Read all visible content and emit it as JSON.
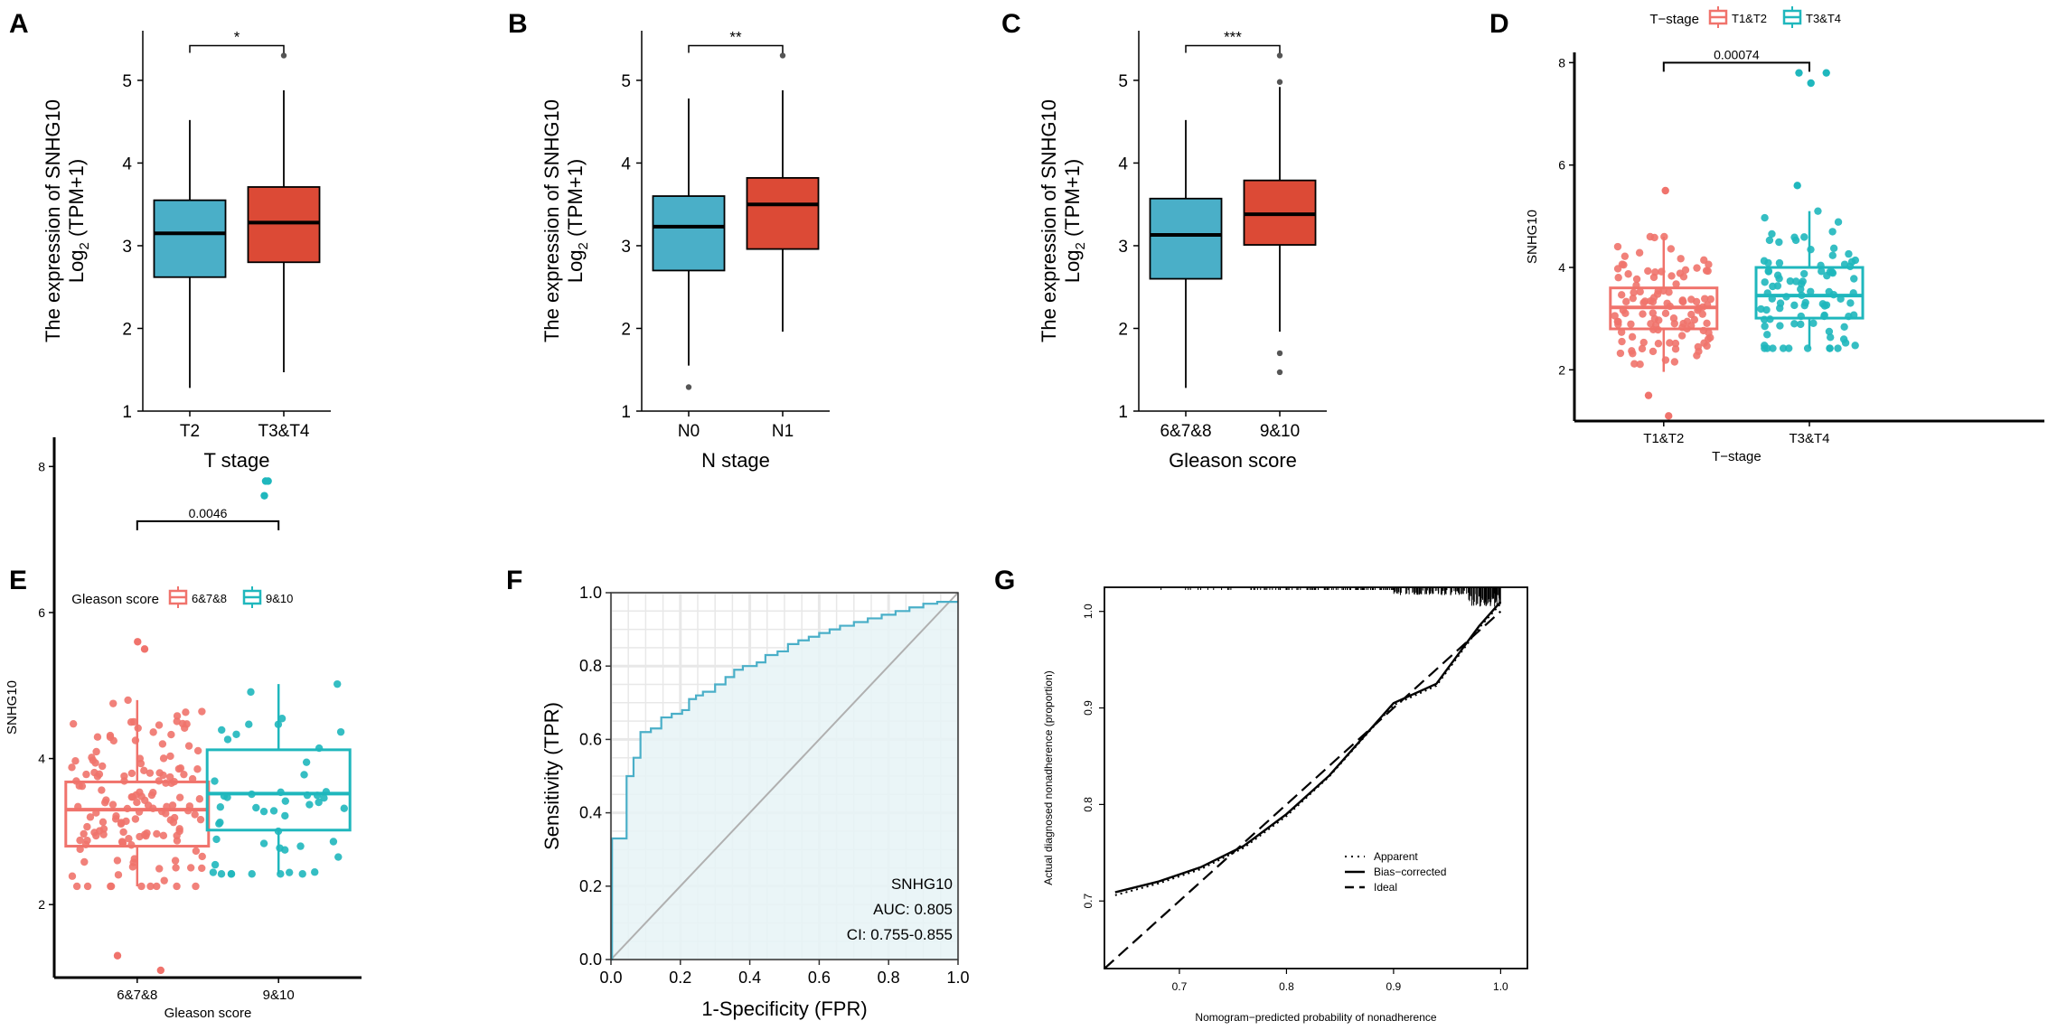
{
  "figure": {
    "description_hidden": false
  },
  "chart_data": [
    {
      "id": "A",
      "panel_label": "A",
      "type": "box",
      "xlabel": "T stage",
      "ylabel_line1": "The expression of SNHG10",
      "ylabel_line2_prefix": "Log",
      "ylabel_line2_sub": "2",
      "ylabel_line2_suffix": " (TPM+1)",
      "ylim": [
        1,
        5.6
      ],
      "yticks": [
        "1",
        "2",
        "3",
        "4",
        "5"
      ],
      "categories": [
        "T2",
        "T3&T4"
      ],
      "boxes": [
        {
          "category": "T2",
          "q1": 2.62,
          "median": 3.15,
          "q3": 3.55,
          "whisker_low": 1.28,
          "whisker_high": 4.52,
          "color": "#4aafc8",
          "outliers": []
        },
        {
          "category": "T3&T4",
          "q1": 2.8,
          "median": 3.28,
          "q3": 3.71,
          "whisker_low": 1.47,
          "whisker_high": 4.88,
          "color": "#dc4a36",
          "outliers": [
            5.3
          ]
        }
      ],
      "significance": {
        "text": "*",
        "level": 5.42
      }
    },
    {
      "id": "B",
      "panel_label": "B",
      "type": "box",
      "xlabel": "N stage",
      "ylabel_line1": "The expression of SNHG10",
      "ylabel_line2_prefix": "Log",
      "ylabel_line2_sub": "2",
      "ylabel_line2_suffix": " (TPM+1)",
      "ylim": [
        1,
        5.6
      ],
      "yticks": [
        "1",
        "2",
        "3",
        "4",
        "5"
      ],
      "categories": [
        "N0",
        "N1"
      ],
      "boxes": [
        {
          "category": "N0",
          "q1": 2.7,
          "median": 3.23,
          "q3": 3.6,
          "whisker_low": 1.55,
          "whisker_high": 4.78,
          "color": "#4aafc8",
          "outliers": [
            1.29
          ]
        },
        {
          "category": "N1",
          "q1": 2.96,
          "median": 3.5,
          "q3": 3.82,
          "whisker_low": 1.96,
          "whisker_high": 4.88,
          "color": "#dc4a36",
          "outliers": [
            5.3
          ]
        }
      ],
      "significance": {
        "text": "**",
        "level": 5.42
      }
    },
    {
      "id": "C",
      "panel_label": "C",
      "type": "box",
      "xlabel": "Gleason score",
      "ylabel_line1": "The expression of SNHG10",
      "ylabel_line2_prefix": "Log",
      "ylabel_line2_sub": "2",
      "ylabel_line2_suffix": " (TPM+1)",
      "ylim": [
        1,
        5.6
      ],
      "yticks": [
        "1",
        "2",
        "3",
        "4",
        "5"
      ],
      "categories": [
        "6&7&8",
        "9&10"
      ],
      "boxes": [
        {
          "category": "6&7&8",
          "q1": 2.6,
          "median": 3.13,
          "q3": 3.57,
          "whisker_low": 1.28,
          "whisker_high": 4.52,
          "color": "#4aafc8",
          "outliers": []
        },
        {
          "category": "9&10",
          "q1": 3.01,
          "median": 3.38,
          "q3": 3.79,
          "whisker_low": 1.96,
          "whisker_high": 4.92,
          "color": "#dc4a36",
          "outliers": [
            5.3,
            4.98,
            1.7,
            1.47
          ]
        }
      ],
      "significance": {
        "text": "***",
        "level": 5.42
      }
    },
    {
      "id": "D",
      "panel_label": "D",
      "type": "box_jitter",
      "xlabel": "T−stage",
      "ylabel": "SNHG10",
      "legend_title": "T−stage",
      "legend_items": [
        "T1&T2",
        "T3&T4"
      ],
      "ylim": [
        1,
        8.2
      ],
      "yticks": [
        "2",
        "4",
        "6",
        "8"
      ],
      "categories": [
        "T1&T2",
        "T3&T4"
      ],
      "boxes": [
        {
          "category": "T1&T2",
          "q1": 2.8,
          "median": 3.22,
          "q3": 3.6,
          "whisker_low": 1.96,
          "whisker_high": 4.6,
          "color": "#f0736c",
          "n_points": 110,
          "high_points": [
            5.5
          ],
          "low_points": [
            1.5,
            1.1
          ]
        },
        {
          "category": "T3&T4",
          "q1": 3.01,
          "median": 3.45,
          "q3": 4.0,
          "whisker_low": 2.42,
          "whisker_high": 5.1,
          "color": "#1fb7bd",
          "n_points": 90,
          "high_points": [
            7.8,
            7.6,
            7.8,
            5.6
          ],
          "low_points": []
        }
      ],
      "significance": {
        "text": "0.00074",
        "level": 8.0
      }
    },
    {
      "id": "E",
      "panel_label": "E",
      "type": "box_jitter",
      "xlabel": "Gleason score",
      "ylabel": "SNHG10",
      "legend_title": "Gleason score",
      "legend_items": [
        "6&7&8",
        "9&10"
      ],
      "ylim": [
        1,
        8.4
      ],
      "yticks": [
        "2",
        "4",
        "6",
        "8"
      ],
      "categories": [
        "6&7&8",
        "9&10"
      ],
      "boxes": [
        {
          "category": "6&7&8",
          "q1": 2.8,
          "median": 3.3,
          "q3": 3.68,
          "whisker_low": 2.25,
          "whisker_high": 4.8,
          "color": "#f0736c",
          "n_points": 150,
          "high_points": [
            5.6,
            5.5
          ],
          "low_points": [
            1.3,
            1.1
          ]
        },
        {
          "category": "9&10",
          "q1": 3.02,
          "median": 3.52,
          "q3": 4.12,
          "whisker_low": 2.42,
          "whisker_high": 5.02,
          "color": "#1fb7bd",
          "n_points": 50,
          "high_points": [
            7.8,
            7.6,
            7.8
          ],
          "low_points": []
        }
      ],
      "significance": {
        "text": "0.0046",
        "level": 7.25
      }
    },
    {
      "id": "F",
      "panel_label": "F",
      "type": "roc",
      "xlabel": "1-Specificity (FPR)",
      "ylabel": "Sensitivity (TPR)",
      "xlim": [
        0,
        1
      ],
      "ylim": [
        0,
        1
      ],
      "xticks": [
        "0.0",
        "0.2",
        "0.4",
        "0.6",
        "0.8",
        "1.0"
      ],
      "yticks": [
        "0.0",
        "0.2",
        "0.4",
        "0.6",
        "0.8",
        "1.0"
      ],
      "annotation": [
        "SNHG10",
        "AUC: 0.805",
        "CI: 0.755-0.855"
      ],
      "curve_color": "#4aafc8",
      "fill_color": "#e6f3f6",
      "roc_points": [
        [
          0,
          0
        ],
        [
          0.003,
          0
        ],
        [
          0.003,
          0.33
        ],
        [
          0.045,
          0.33
        ],
        [
          0.045,
          0.5
        ],
        [
          0.065,
          0.5
        ],
        [
          0.065,
          0.55
        ],
        [
          0.085,
          0.55
        ],
        [
          0.085,
          0.62
        ],
        [
          0.115,
          0.62
        ],
        [
          0.115,
          0.63
        ],
        [
          0.145,
          0.63
        ],
        [
          0.145,
          0.66
        ],
        [
          0.175,
          0.66
        ],
        [
          0.175,
          0.67
        ],
        [
          0.205,
          0.67
        ],
        [
          0.205,
          0.68
        ],
        [
          0.225,
          0.68
        ],
        [
          0.225,
          0.71
        ],
        [
          0.245,
          0.71
        ],
        [
          0.245,
          0.72
        ],
        [
          0.265,
          0.72
        ],
        [
          0.265,
          0.73
        ],
        [
          0.3,
          0.73
        ],
        [
          0.3,
          0.75
        ],
        [
          0.33,
          0.75
        ],
        [
          0.33,
          0.77
        ],
        [
          0.355,
          0.77
        ],
        [
          0.355,
          0.79
        ],
        [
          0.38,
          0.79
        ],
        [
          0.38,
          0.8
        ],
        [
          0.42,
          0.8
        ],
        [
          0.42,
          0.81
        ],
        [
          0.445,
          0.81
        ],
        [
          0.445,
          0.83
        ],
        [
          0.48,
          0.83
        ],
        [
          0.48,
          0.84
        ],
        [
          0.51,
          0.84
        ],
        [
          0.51,
          0.86
        ],
        [
          0.54,
          0.86
        ],
        [
          0.54,
          0.87
        ],
        [
          0.57,
          0.87
        ],
        [
          0.57,
          0.88
        ],
        [
          0.6,
          0.88
        ],
        [
          0.6,
          0.89
        ],
        [
          0.63,
          0.89
        ],
        [
          0.63,
          0.9
        ],
        [
          0.66,
          0.9
        ],
        [
          0.66,
          0.91
        ],
        [
          0.7,
          0.91
        ],
        [
          0.7,
          0.92
        ],
        [
          0.74,
          0.92
        ],
        [
          0.74,
          0.93
        ],
        [
          0.78,
          0.93
        ],
        [
          0.78,
          0.94
        ],
        [
          0.82,
          0.94
        ],
        [
          0.82,
          0.95
        ],
        [
          0.86,
          0.95
        ],
        [
          0.86,
          0.96
        ],
        [
          0.9,
          0.96
        ],
        [
          0.9,
          0.97
        ],
        [
          0.94,
          0.97
        ],
        [
          0.94,
          0.975
        ],
        [
          1,
          0.975
        ]
      ]
    },
    {
      "id": "G",
      "panel_label": "G",
      "type": "calibration",
      "xlabel": "Nomogram−predicted probability of nonadherence",
      "ylabel": "Actual diagnosed nonadherence (proportion)",
      "xlim": [
        0.63,
        1.025
      ],
      "ylim": [
        0.63,
        1.025
      ],
      "xticks": [
        0.7,
        0.8,
        0.9,
        1.0
      ],
      "xtick_labels": [
        "0.7",
        "0.8",
        "0.9",
        "1.0"
      ],
      "yticks": [
        0.7,
        0.8,
        0.9,
        1.0
      ],
      "ytick_labels": [
        "0.7",
        "0.8",
        "0.9",
        "1.0"
      ],
      "legend": [
        "Apparent",
        "Bias−corrected",
        "Ideal"
      ],
      "bias_corrected": [
        [
          0.64,
          0.709
        ],
        [
          0.68,
          0.72
        ],
        [
          0.72,
          0.735
        ],
        [
          0.76,
          0.757
        ],
        [
          0.8,
          0.79
        ],
        [
          0.84,
          0.83
        ],
        [
          0.88,
          0.88
        ],
        [
          0.9,
          0.905
        ],
        [
          0.93,
          0.92
        ],
        [
          0.94,
          0.925
        ],
        [
          0.96,
          0.955
        ],
        [
          0.98,
          0.985
        ],
        [
          1.0,
          1.01
        ]
      ],
      "apparent": [
        [
          0.64,
          0.706
        ],
        [
          0.68,
          0.718
        ],
        [
          0.72,
          0.733
        ],
        [
          0.76,
          0.755
        ],
        [
          0.8,
          0.788
        ],
        [
          0.84,
          0.829
        ],
        [
          0.88,
          0.879
        ],
        [
          0.9,
          0.903
        ],
        [
          0.93,
          0.918
        ],
        [
          0.94,
          0.923
        ],
        [
          0.96,
          0.953
        ],
        [
          0.98,
          0.983
        ],
        [
          1.0,
          1.008
        ]
      ],
      "ideal": [
        [
          0.63,
          0.63
        ],
        [
          1.0,
          1.0
        ]
      ]
    }
  ]
}
